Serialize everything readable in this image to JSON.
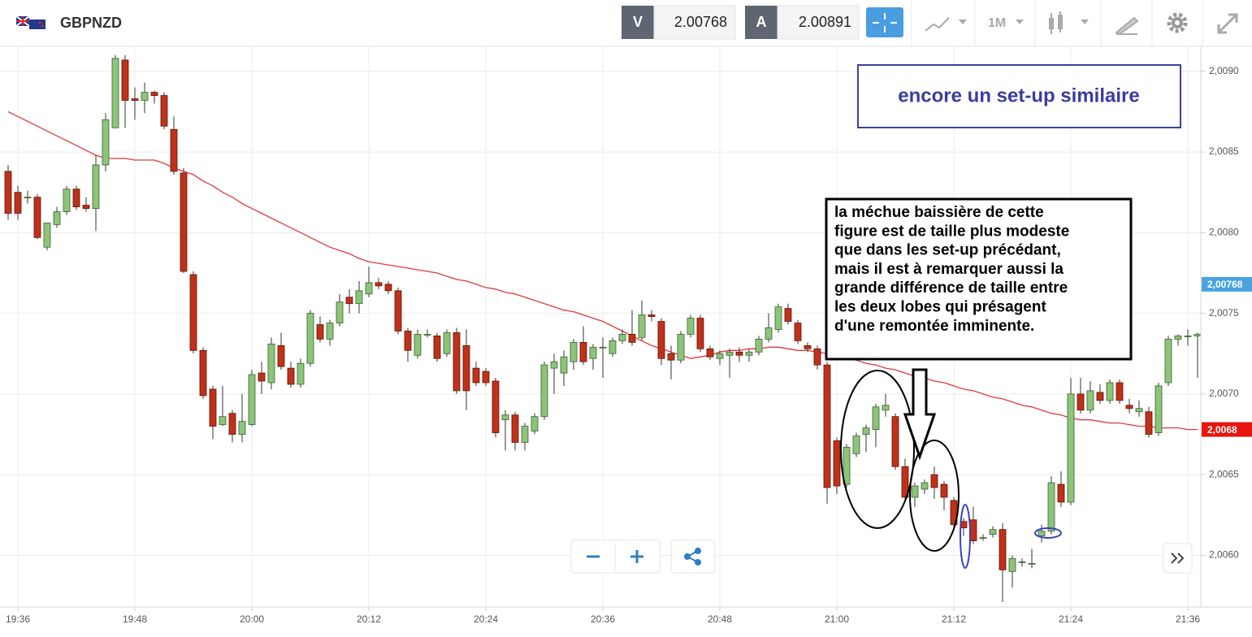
{
  "header": {
    "symbol": "GBPNZD",
    "bid_label": "V",
    "bid": "2.00768",
    "ask_label": "A",
    "ask": "2.00891",
    "timeframe": "1M"
  },
  "annotations": {
    "box_title": "encore un set-up similaire",
    "note_lines": [
      "la méchue baissière de cette",
      "figure est de taille plus modeste",
      "que dans les set-up précédant,",
      "mais il est à  remarquer aussi la",
      "grande différence de taille entre",
      "les deux lobes qui présagent",
      "d'une remontée imminente."
    ]
  },
  "chart_data": {
    "type": "candlestick",
    "categories": [
      null,
      "19:36",
      null,
      null,
      null,
      null,
      null,
      null,
      null,
      null,
      null,
      null,
      null,
      "19:48",
      null,
      null,
      null,
      null,
      null,
      null,
      null,
      null,
      null,
      null,
      null,
      "20:00",
      null,
      null,
      null,
      null,
      null,
      null,
      null,
      null,
      null,
      null,
      null,
      "20:12",
      null,
      null,
      null,
      null,
      null,
      null,
      null,
      null,
      null,
      null,
      null,
      "20:24",
      null,
      null,
      null,
      null,
      null,
      null,
      null,
      null,
      null,
      null,
      null,
      "20:36",
      null,
      null,
      null,
      null,
      null,
      null,
      null,
      null,
      null,
      null,
      null,
      "20:48",
      null,
      null,
      null,
      null,
      null,
      null,
      null,
      null,
      null,
      null,
      null,
      "21:00",
      null,
      null,
      null,
      null,
      null,
      null,
      null,
      null,
      null,
      null,
      null,
      "21:12",
      null,
      null,
      null,
      null,
      null,
      null,
      null,
      null,
      null,
      null,
      null,
      "21:24",
      null,
      null,
      null,
      null,
      null,
      null,
      null,
      null,
      null,
      null,
      null,
      "21:36",
      null
    ],
    "open": [
      2.00838,
      2.00825,
      2.00822,
      2.00822,
      2.00791,
      2.00805,
      2.00813,
      2.00827,
      2.00817,
      2.00815,
      2.00842,
      2.00865,
      2.00907,
      2.00883,
      2.00882,
      2.00887,
      2.00885,
      2.00864,
      2.00837,
      2.00774,
      2.00727,
      2.00703,
      2.00681,
      2.00688,
      2.00675,
      2.00681,
      2.00713,
      2.00707,
      2.0073,
      2.00716,
      2.00706,
      2.00719,
      2.00743,
      2.00734,
      2.00744,
      2.0076,
      2.00756,
      2.00762,
      2.00769,
      2.00768,
      2.00764,
      2.00739,
      2.00724,
      2.00737,
      2.00736,
      2.00725,
      2.00738,
      2.0073,
      2.00716,
      2.00714,
      2.00708,
      2.00684,
      2.00687,
      2.0067,
      2.00677,
      2.00686,
      2.00716,
      2.00713,
      2.0072,
      2.00732,
      2.00722,
      2.00729,
      2.00725,
      2.00733,
      2.00737,
      2.00735,
      2.00749,
      2.00745,
      2.00725,
      2.00721,
      2.00737,
      2.00747,
      2.00728,
      2.00722,
      2.00724,
      2.00726,
      2.00724,
      2.00726,
      2.00734,
      2.0074,
      2.00753,
      2.00744,
      2.0073,
      2.00728,
      2.00718,
      2.00671,
      2.00644,
      2.00663,
      2.00675,
      2.00678,
      2.0069,
      2.00686,
      2.00655,
      2.00636,
      2.00641,
      2.0065,
      2.00644,
      2.00634,
      2.00621,
      2.00622,
      2.00611,
      2.00613,
      2.00616,
      2.0059,
      2.00596,
      2.00595,
      2.00612,
      2.00615,
      2.00644,
      2.00633,
      2.007,
      2.0069,
      2.00701,
      2.00696,
      2.00707,
      2.00693,
      2.00689,
      2.00689,
      2.00676,
      2.00707,
      2.00734,
      2.00736,
      2.00736
    ],
    "high": [
      2.00842,
      2.00829,
      2.00826,
      2.00824,
      2.00806,
      2.00816,
      2.00829,
      2.00829,
      2.00822,
      2.00848,
      2.00874,
      2.0091,
      2.0091,
      2.0089,
      2.00893,
      2.00888,
      2.00887,
      2.00872,
      2.0084,
      2.00776,
      2.00729,
      2.00705,
      2.00705,
      2.0069,
      2.007,
      2.00715,
      2.0072,
      2.00735,
      2.00738,
      2.0072,
      2.00722,
      2.00752,
      2.00748,
      2.00746,
      2.00762,
      2.00765,
      2.0077,
      2.00779,
      2.00772,
      2.0077,
      2.00766,
      2.00741,
      2.0074,
      2.0074,
      2.00738,
      2.0074,
      2.00741,
      2.0074,
      2.0072,
      2.00716,
      2.0071,
      2.0069,
      2.00689,
      2.00682,
      2.00688,
      2.0072,
      2.00725,
      2.00727,
      2.00734,
      2.00742,
      2.00731,
      2.00735,
      2.00735,
      2.0074,
      2.00752,
      2.00758,
      2.00752,
      2.00747,
      2.0073,
      2.00739,
      2.00749,
      2.00749,
      2.0073,
      2.00727,
      2.00728,
      2.00729,
      2.00728,
      2.00736,
      2.0075,
      2.00756,
      2.00756,
      2.00746,
      2.00732,
      2.0073,
      2.0072,
      2.00673,
      2.00669,
      2.00676,
      2.00681,
      2.00694,
      2.007,
      2.00688,
      2.0066,
      2.00645,
      2.00647,
      2.00655,
      2.00646,
      2.00636,
      2.00623,
      2.0063,
      2.00613,
      2.00618,
      2.0062,
      2.006,
      2.00598,
      2.00604,
      2.00619,
      2.00649,
      2.00652,
      2.0071,
      2.0071,
      2.00708,
      2.00706,
      2.00709,
      2.00709,
      2.00697,
      2.00696,
      2.00692,
      2.00707,
      2.00736,
      2.00737,
      2.0074,
      2.00738
    ],
    "low": [
      2.00808,
      2.00808,
      2.00818,
      2.00796,
      2.00789,
      2.00803,
      2.00811,
      2.00814,
      2.00813,
      2.00801,
      2.00838,
      2.00865,
      2.00865,
      2.0087,
      2.00874,
      2.0088,
      2.00864,
      2.00836,
      2.00775,
      2.00725,
      2.00697,
      2.00672,
      2.0068,
      2.0067,
      2.0067,
      2.0068,
      2.007,
      2.00703,
      2.00715,
      2.00704,
      2.00704,
      2.00717,
      2.00732,
      2.0073,
      2.00742,
      2.0075,
      2.0075,
      2.0076,
      2.00765,
      2.00762,
      2.00737,
      2.0072,
      2.00722,
      2.00735,
      2.0072,
      2.00723,
      2.007,
      2.0069,
      2.00705,
      2.00705,
      2.00673,
      2.00665,
      2.00665,
      2.00665,
      2.00675,
      2.00684,
      2.007,
      2.00705,
      2.00715,
      2.00718,
      2.00715,
      2.0071,
      2.00723,
      2.00731,
      2.0073,
      2.00733,
      2.00745,
      2.00718,
      2.00709,
      2.00719,
      2.00735,
      2.00726,
      2.00721,
      2.00718,
      2.0071,
      2.0072,
      2.0072,
      2.00724,
      2.00732,
      2.00738,
      2.00743,
      2.00731,
      2.00726,
      2.00715,
      2.00632,
      2.00638,
      2.00642,
      2.00661,
      2.00664,
      2.00667,
      2.00686,
      2.00653,
      2.00634,
      2.0063,
      2.00638,
      2.00635,
      2.00628,
      2.00617,
      2.00612,
      2.00607,
      2.00609,
      2.00611,
      2.00571,
      2.0058,
      2.00593,
      2.00592,
      2.00608,
      2.00613,
      2.0063,
      2.00631,
      2.00688,
      2.00688,
      2.00694,
      2.00694,
      2.00694,
      2.00688,
      2.00686,
      2.00673,
      2.00674,
      2.00705,
      2.0073,
      2.0073,
      2.0071
    ],
    "close": [
      2.00812,
      2.00812,
      2.00822,
      2.00797,
      2.00806,
      2.00813,
      2.00827,
      2.00816,
      2.00815,
      2.00842,
      2.0087,
      2.00908,
      2.00882,
      2.00882,
      2.00887,
      2.00885,
      2.00866,
      2.00838,
      2.00776,
      2.00727,
      2.00699,
      2.0068,
      2.00686,
      2.00675,
      2.00683,
      2.00712,
      2.00708,
      2.00731,
      2.00717,
      2.00706,
      2.00719,
      2.0075,
      2.00734,
      2.00744,
      2.00757,
      2.00756,
      2.00764,
      2.00769,
      2.00767,
      2.00764,
      2.00739,
      2.00727,
      2.00737,
      2.00737,
      2.00722,
      2.00738,
      2.00702,
      2.00702,
      2.00707,
      2.00707,
      2.00676,
      2.00687,
      2.0067,
      2.0068,
      2.00686,
      2.00718,
      2.0072,
      2.00723,
      2.00732,
      2.0072,
      2.00729,
      2.00729,
      2.00733,
      2.00737,
      2.00732,
      2.00749,
      2.00748,
      2.00722,
      2.00721,
      2.00737,
      2.00747,
      2.00728,
      2.00723,
      2.00725,
      2.00726,
      2.00724,
      2.00726,
      2.00734,
      2.00741,
      2.00754,
      2.00745,
      2.00733,
      2.00728,
      2.00718,
      2.00642,
      2.00643,
      2.00667,
      2.00674,
      2.00679,
      2.00692,
      2.00693,
      2.00655,
      2.00636,
      2.00643,
      2.00645,
      2.00642,
      2.00636,
      2.00619,
      2.00617,
      2.00609,
      2.00611,
      2.00616,
      2.00591,
      2.00598,
      2.00596,
      2.00595,
      2.00615,
      2.00645,
      2.00633,
      2.007,
      2.0069,
      2.00702,
      2.00696,
      2.00707,
      2.00696,
      2.00691,
      2.00691,
      2.00675,
      2.00705,
      2.00734,
      2.00736,
      2.00736,
      2.00737
    ],
    "up_color": "#8cc47a",
    "down_color": "#c0311a",
    "moving_average": {
      "color": "#e03a3a",
      "values": [
        2.00875,
        2.00872,
        2.00869,
        2.00866,
        2.00863,
        2.0086,
        2.00857,
        2.00854,
        2.00851,
        2.00848,
        2.00846,
        2.00846,
        2.00846,
        2.00845,
        2.00845,
        2.00845,
        2.00843,
        2.0084,
        2.00838,
        2.00836,
        2.00832,
        2.00829,
        2.00825,
        2.00822,
        2.00818,
        2.00815,
        2.00812,
        2.00809,
        2.00806,
        2.00803,
        2.008,
        2.00797,
        2.00794,
        2.00791,
        2.00789,
        2.00787,
        2.00784,
        2.00782,
        2.00781,
        2.0078,
        2.00779,
        2.00778,
        2.00777,
        2.00776,
        2.00775,
        2.00773,
        2.00771,
        2.0077,
        2.00768,
        2.00766,
        2.00765,
        2.00763,
        2.00762,
        2.0076,
        2.00758,
        2.00756,
        2.00754,
        2.00752,
        2.00751,
        2.00749,
        2.00747,
        2.00745,
        2.00742,
        2.00739,
        2.00736,
        2.00733,
        2.0073,
        2.00728,
        2.00726,
        2.00724,
        2.00722,
        2.00723,
        2.00724,
        2.00726,
        2.00727,
        2.00727,
        2.00728,
        2.00728,
        2.00729,
        2.00729,
        2.00728,
        2.00727,
        2.00727,
        2.00726,
        2.00725,
        2.00724,
        2.00722,
        2.00721,
        2.00719,
        2.00718,
        2.00716,
        2.00715,
        2.00713,
        2.00711,
        2.0071,
        2.00708,
        2.00707,
        2.00705,
        2.00703,
        2.00702,
        2.007,
        2.00698,
        2.00697,
        2.00695,
        2.00693,
        2.00692,
        2.0069,
        2.00688,
        2.00687,
        2.00685,
        2.00684,
        2.00684,
        2.00683,
        2.00682,
        2.00682,
        2.00681,
        2.0068,
        2.0068,
        2.00679,
        2.00679,
        2.00679,
        2.00678,
        2.00678
      ]
    },
    "ylim": [
      2.00568,
      2.00915
    ],
    "yticks": [
      {
        "value": 2.006,
        "label": "2,0060"
      },
      {
        "value": 2.0065,
        "label": "2,0065"
      },
      {
        "value": 2.007,
        "label": "2,0070"
      },
      {
        "value": 2.0075,
        "label": "2,0075"
      },
      {
        "value": 2.008,
        "label": "2,0080"
      },
      {
        "value": 2.0085,
        "label": "2,0085"
      },
      {
        "value": 2.009,
        "label": "2,0090"
      }
    ],
    "grid": true,
    "price_markers": [
      {
        "value": 2.00768,
        "label": "2,00768",
        "color": "#4aa3df"
      },
      {
        "value": 2.00678,
        "label": "2,0068",
        "color": "#e8140f"
      }
    ]
  }
}
